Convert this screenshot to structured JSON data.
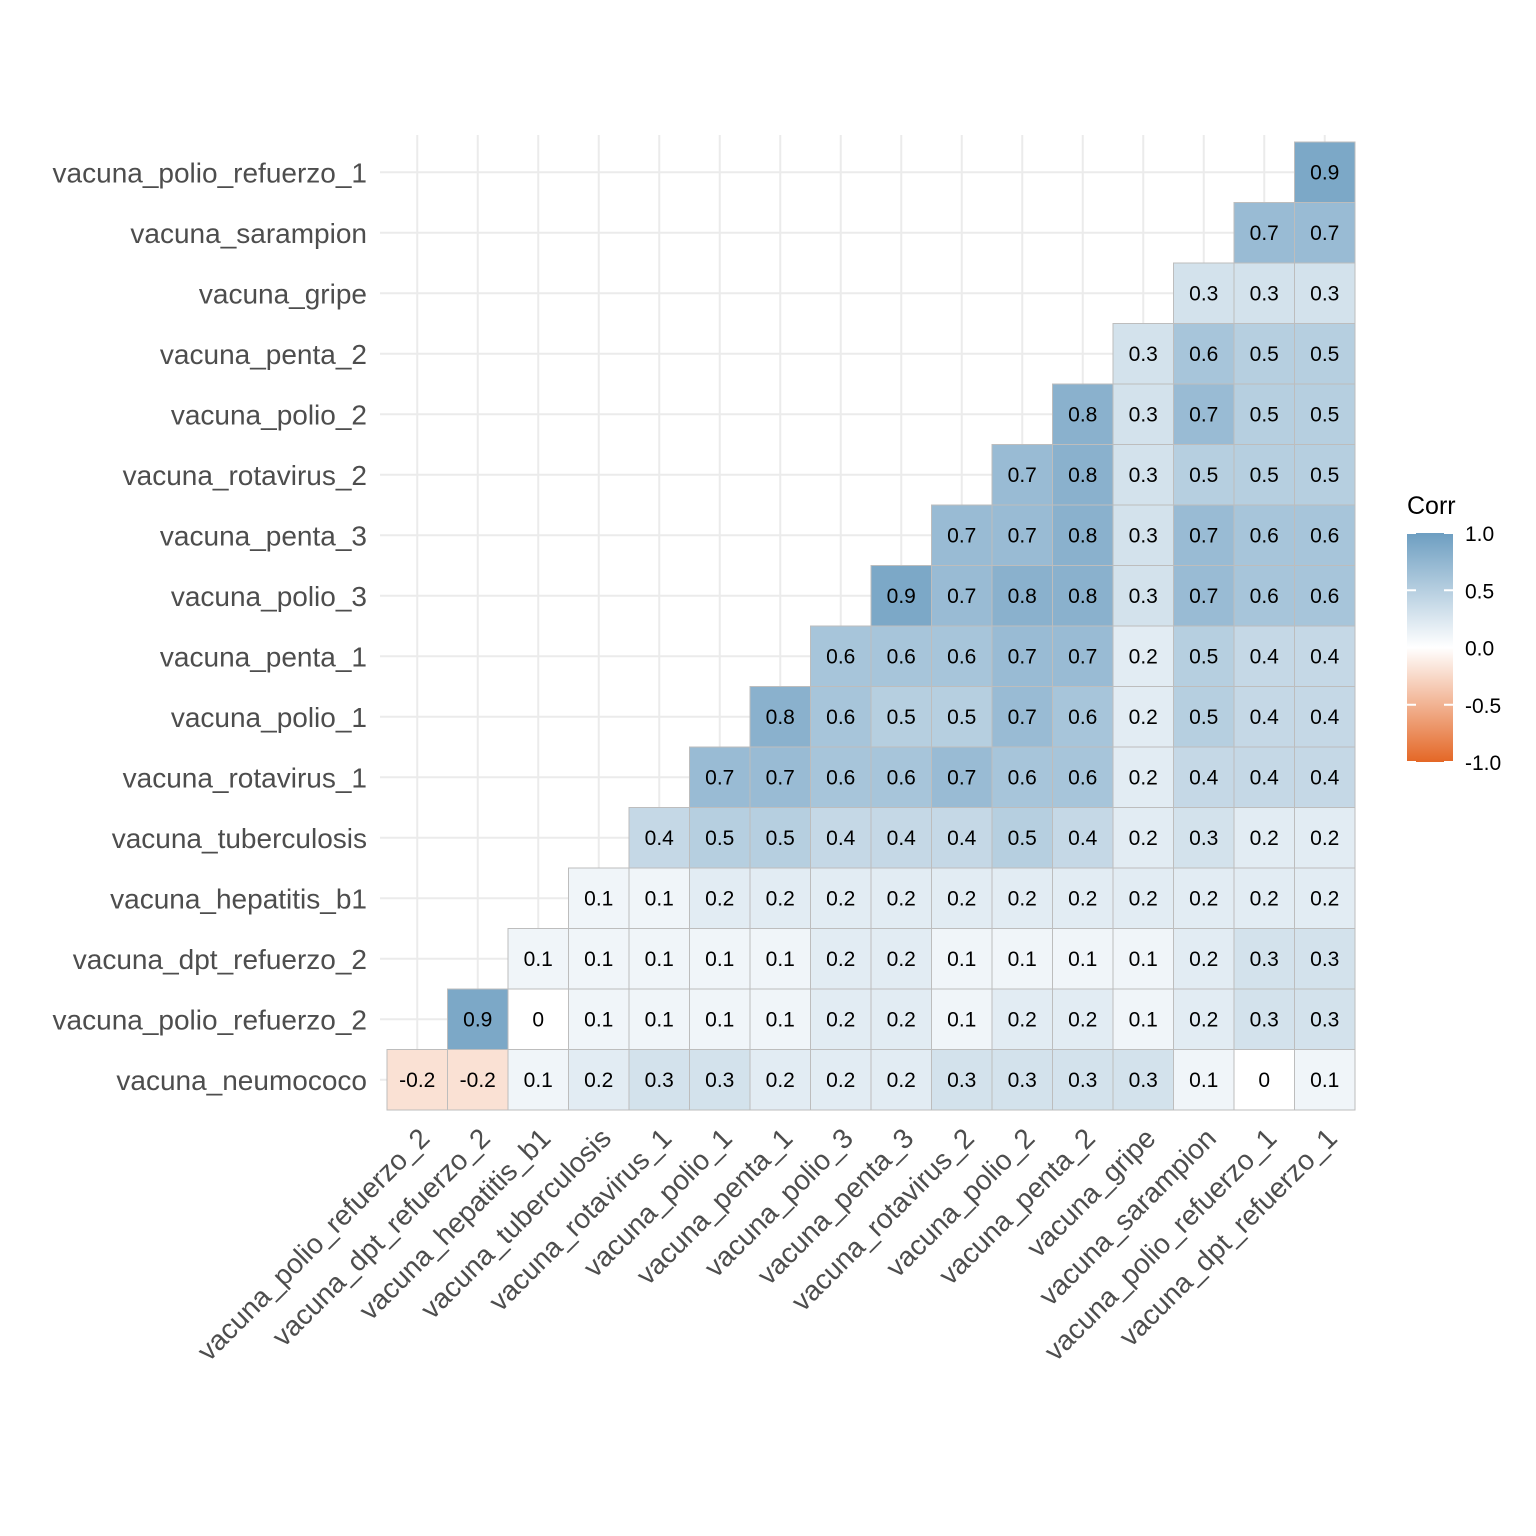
{
  "chart_data": {
    "type": "heatmap",
    "title": "",
    "xlabel": "",
    "ylabel": "",
    "x_categories": [
      "vacuna_polio_refuerzo_2",
      "vacuna_dpt_refuerzo_2",
      "vacuna_hepatitis_b1",
      "vacuna_tuberculosis",
      "vacuna_rotavirus_1",
      "vacuna_polio_1",
      "vacuna_penta_1",
      "vacuna_polio_3",
      "vacuna_penta_3",
      "vacuna_rotavirus_2",
      "vacuna_polio_2",
      "vacuna_penta_2",
      "vacuna_gripe",
      "vacuna_sarampion",
      "vacuna_polio_refuerzo_1",
      "vacuna_dpt_refuerzo_1"
    ],
    "y_categories": [
      "vacuna_neumococo",
      "vacuna_polio_refuerzo_2",
      "vacuna_dpt_refuerzo_2",
      "vacuna_hepatitis_b1",
      "vacuna_tuberculosis",
      "vacuna_rotavirus_1",
      "vacuna_polio_1",
      "vacuna_penta_1",
      "vacuna_polio_3",
      "vacuna_penta_3",
      "vacuna_rotavirus_2",
      "vacuna_polio_2",
      "vacuna_penta_2",
      "vacuna_gripe",
      "vacuna_sarampion",
      "vacuna_polio_refuerzo_1"
    ],
    "values": [
      [
        -0.2,
        -0.2,
        0.1,
        0.2,
        0.3,
        0.3,
        0.2,
        0.2,
        0.2,
        0.3,
        0.3,
        0.3,
        0.3,
        0.1,
        0,
        0.1
      ],
      [
        null,
        0.9,
        0,
        0.1,
        0.1,
        0.1,
        0.1,
        0.2,
        0.2,
        0.1,
        0.2,
        0.2,
        0.1,
        0.2,
        0.3,
        0.3
      ],
      [
        null,
        null,
        0.1,
        0.1,
        0.1,
        0.1,
        0.1,
        0.2,
        0.2,
        0.1,
        0.1,
        0.1,
        0.1,
        0.2,
        0.3,
        0.3
      ],
      [
        null,
        null,
        null,
        0.1,
        0.1,
        0.2,
        0.2,
        0.2,
        0.2,
        0.2,
        0.2,
        0.2,
        0.2,
        0.2,
        0.2,
        0.2
      ],
      [
        null,
        null,
        null,
        null,
        0.4,
        0.5,
        0.5,
        0.4,
        0.4,
        0.4,
        0.5,
        0.4,
        0.2,
        0.3,
        0.2,
        0.2
      ],
      [
        null,
        null,
        null,
        null,
        null,
        0.7,
        0.7,
        0.6,
        0.6,
        0.7,
        0.6,
        0.6,
        0.2,
        0.4,
        0.4,
        0.4
      ],
      [
        null,
        null,
        null,
        null,
        null,
        null,
        0.8,
        0.6,
        0.5,
        0.5,
        0.7,
        0.6,
        0.2,
        0.5,
        0.4,
        0.4
      ],
      [
        null,
        null,
        null,
        null,
        null,
        null,
        null,
        0.6,
        0.6,
        0.6,
        0.7,
        0.7,
        0.2,
        0.5,
        0.4,
        0.4
      ],
      [
        null,
        null,
        null,
        null,
        null,
        null,
        null,
        null,
        0.9,
        0.7,
        0.8,
        0.8,
        0.3,
        0.7,
        0.6,
        0.6
      ],
      [
        null,
        null,
        null,
        null,
        null,
        null,
        null,
        null,
        null,
        0.7,
        0.7,
        0.8,
        0.3,
        0.7,
        0.6,
        0.6
      ],
      [
        null,
        null,
        null,
        null,
        null,
        null,
        null,
        null,
        null,
        null,
        0.7,
        0.8,
        0.3,
        0.5,
        0.5,
        0.5
      ],
      [
        null,
        null,
        null,
        null,
        null,
        null,
        null,
        null,
        null,
        null,
        null,
        0.8,
        0.3,
        0.7,
        0.5,
        0.5
      ],
      [
        null,
        null,
        null,
        null,
        null,
        null,
        null,
        null,
        null,
        null,
        null,
        null,
        0.3,
        0.6,
        0.5,
        0.5
      ],
      [
        null,
        null,
        null,
        null,
        null,
        null,
        null,
        null,
        null,
        null,
        null,
        null,
        null,
        0.3,
        0.3,
        0.3
      ],
      [
        null,
        null,
        null,
        null,
        null,
        null,
        null,
        null,
        null,
        null,
        null,
        null,
        null,
        null,
        0.7,
        0.7
      ],
      [
        null,
        null,
        null,
        null,
        null,
        null,
        null,
        null,
        null,
        null,
        null,
        null,
        null,
        null,
        null,
        0.9
      ]
    ],
    "value_labels": [
      [
        "-0.2",
        "-0.2",
        "0.1",
        "0.2",
        "0.3",
        "0.3",
        "0.2",
        "0.2",
        "0.2",
        "0.3",
        "0.3",
        "0.3",
        "0.3",
        "0.1",
        "0",
        "0.1"
      ],
      [
        null,
        "0.9",
        "0",
        "0.1",
        "0.1",
        "0.1",
        "0.1",
        "0.2",
        "0.2",
        "0.1",
        "0.2",
        "0.2",
        "0.1",
        "0.2",
        "0.3",
        "0.3"
      ],
      [
        null,
        null,
        "0.1",
        "0.1",
        "0.1",
        "0.1",
        "0.1",
        "0.2",
        "0.2",
        "0.1",
        "0.1",
        "0.1",
        "0.1",
        "0.2",
        "0.3",
        "0.3"
      ],
      [
        null,
        null,
        null,
        "0.1",
        "0.1",
        "0.2",
        "0.2",
        "0.2",
        "0.2",
        "0.2",
        "0.2",
        "0.2",
        "0.2",
        "0.2",
        "0.2",
        "0.2"
      ],
      [
        null,
        null,
        null,
        null,
        "0.4",
        "0.5",
        "0.5",
        "0.4",
        "0.4",
        "0.4",
        "0.5",
        "0.4",
        "0.2",
        "0.3",
        "0.2",
        "0.2"
      ],
      [
        null,
        null,
        null,
        null,
        null,
        "0.7",
        "0.7",
        "0.6",
        "0.6",
        "0.7",
        "0.6",
        "0.6",
        "0.2",
        "0.4",
        "0.4",
        "0.4"
      ],
      [
        null,
        null,
        null,
        null,
        null,
        null,
        "0.8",
        "0.6",
        "0.5",
        "0.5",
        "0.7",
        "0.6",
        "0.2",
        "0.5",
        "0.4",
        "0.4"
      ],
      [
        null,
        null,
        null,
        null,
        null,
        null,
        null,
        "0.6",
        "0.6",
        "0.6",
        "0.7",
        "0.7",
        "0.2",
        "0.5",
        "0.4",
        "0.4"
      ],
      [
        null,
        null,
        null,
        null,
        null,
        null,
        null,
        null,
        "0.9",
        "0.7",
        "0.8",
        "0.8",
        "0.3",
        "0.7",
        "0.6",
        "0.6"
      ],
      [
        null,
        null,
        null,
        null,
        null,
        null,
        null,
        null,
        null,
        "0.7",
        "0.7",
        "0.8",
        "0.3",
        "0.7",
        "0.6",
        "0.6"
      ],
      [
        null,
        null,
        null,
        null,
        null,
        null,
        null,
        null,
        null,
        null,
        "0.7",
        "0.8",
        "0.3",
        "0.5",
        "0.5",
        "0.5"
      ],
      [
        null,
        null,
        null,
        null,
        null,
        null,
        null,
        null,
        null,
        null,
        null,
        "0.8",
        "0.3",
        "0.7",
        "0.5",
        "0.5"
      ],
      [
        null,
        null,
        null,
        null,
        null,
        null,
        null,
        null,
        null,
        null,
        null,
        null,
        "0.3",
        "0.6",
        "0.5",
        "0.5"
      ],
      [
        null,
        null,
        null,
        null,
        null,
        null,
        null,
        null,
        null,
        null,
        null,
        null,
        null,
        "0.3",
        "0.3",
        "0.3"
      ],
      [
        null,
        null,
        null,
        null,
        null,
        null,
        null,
        null,
        null,
        null,
        null,
        null,
        null,
        null,
        "0.7",
        "0.7"
      ],
      [
        null,
        null,
        null,
        null,
        null,
        null,
        null,
        null,
        null,
        null,
        null,
        null,
        null,
        null,
        null,
        "0.9"
      ]
    ],
    "color_scale": {
      "low": "#E46726",
      "mid": "#FFFFFF",
      "high": "#6D9EC1",
      "limits": [
        -1,
        1
      ]
    },
    "legend": {
      "title": "Corr",
      "ticks": [
        "1.0",
        "0.5",
        "0.0",
        "-0.5",
        "-1.0"
      ],
      "tick_values": [
        1,
        0.5,
        0,
        -0.5,
        -1
      ],
      "placement": "right"
    },
    "grid": true,
    "lower_triangle_shown": true
  }
}
